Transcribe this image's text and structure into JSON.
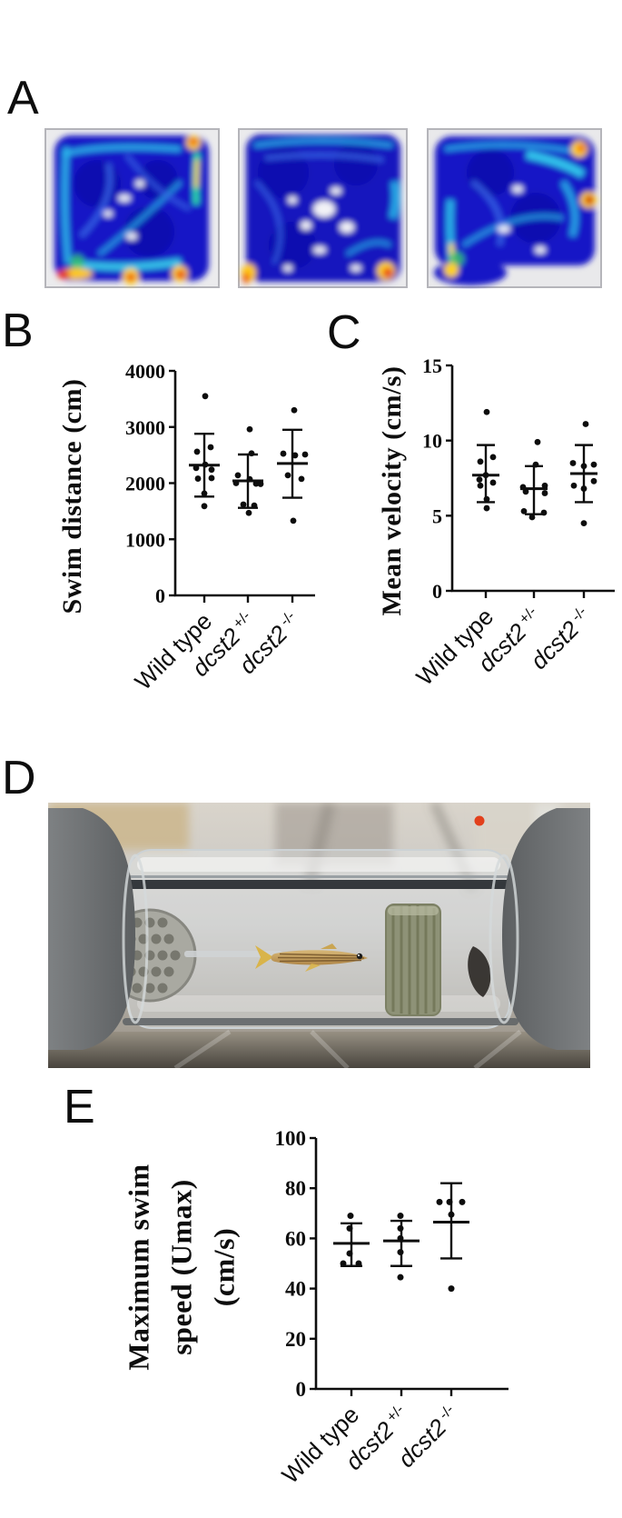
{
  "panels": {
    "a": {
      "label": "A"
    },
    "b": {
      "label": "B"
    },
    "c": {
      "label": "C"
    },
    "d": {
      "label": "D"
    },
    "e": {
      "label": "E"
    }
  },
  "colors": {
    "heatmap_palette": [
      "#0c0cb0",
      "#1516c6",
      "#2bb9ea",
      "#35c46a",
      "#ffd21c",
      "#e8381a"
    ],
    "axis_ink": "#0d0d0d",
    "background": "#ffffff"
  },
  "categories": [
    "Wild type",
    "dcst2 +/-",
    "dcst2 -/-"
  ],
  "chart_data": [
    {
      "id": "b",
      "type": "scatter",
      "title": "Swim distance (cm)",
      "ylabel": "Swim distance (cm)",
      "ylim": [
        0,
        4000
      ],
      "yticks": [
        0,
        1000,
        2000,
        3000,
        4000
      ],
      "grid": false,
      "categories": [
        "Wild type",
        "dcst2 +/-",
        "dcst2 -/-"
      ],
      "cats": [
        [
          {
            "text": "Wild type"
          }
        ],
        [
          {
            "text": "dcst2",
            "italic": true
          },
          {
            "text": " +/-",
            "sup": true
          }
        ],
        [
          {
            "text": "dcst2",
            "italic": true
          },
          {
            "text": " -/-",
            "sup": true
          }
        ]
      ],
      "series": [
        {
          "name": "Wild type",
          "mean": 2320,
          "sd_low": 1760,
          "sd_high": 2880,
          "points": [
            [
              3550,
              1
            ],
            [
              2640,
              7
            ],
            [
              2560,
              -8
            ],
            [
              2330,
              1
            ],
            [
              2270,
              -9
            ],
            [
              2240,
              8
            ],
            [
              2090,
              8
            ],
            [
              2080,
              -7
            ],
            [
              1815,
              0
            ],
            [
              1590,
              0
            ]
          ]
        },
        {
          "name": "dcst2 +/-",
          "mean": 2040,
          "sd_low": 1560,
          "sd_high": 2510,
          "points": [
            [
              2960,
              2
            ],
            [
              2530,
              4
            ],
            [
              2140,
              -11
            ],
            [
              2070,
              2
            ],
            [
              2000,
              -13
            ],
            [
              1990,
              9
            ],
            [
              1985,
              14
            ],
            [
              1620,
              -5
            ],
            [
              1600,
              7
            ],
            [
              1470,
              1
            ]
          ]
        },
        {
          "name": "dcst2 -/-",
          "mean": 2350,
          "sd_low": 1740,
          "sd_high": 2950,
          "points": [
            [
              3300,
              2
            ],
            [
              2525,
              -10
            ],
            [
              2510,
              14
            ],
            [
              2495,
              3
            ],
            [
              2140,
              -5
            ],
            [
              2075,
              10
            ],
            [
              1330,
              1
            ]
          ]
        }
      ]
    },
    {
      "id": "c",
      "type": "scatter",
      "title": "Mean velocity (cm/s)",
      "ylabel": "Mean velocity (cm/s)",
      "ylim": [
        0,
        15
      ],
      "yticks": [
        0,
        5,
        10,
        15
      ],
      "grid": false,
      "categories": [
        "Wild type",
        "dcst2 +/-",
        "dcst2 -/-"
      ],
      "cats": [
        [
          {
            "text": "Wild type"
          }
        ],
        [
          {
            "text": "dcst2",
            "italic": true
          },
          {
            "text": " +/-",
            "sup": true
          }
        ],
        [
          {
            "text": "dcst2",
            "italic": true
          },
          {
            "text": " -/-",
            "sup": true
          }
        ]
      ],
      "series": [
        {
          "name": "Wild type",
          "mean": 7.7,
          "sd_low": 5.9,
          "sd_high": 9.7,
          "points": [
            [
              11.9,
              1
            ],
            [
              8.9,
              8
            ],
            [
              8.6,
              -6
            ],
            [
              7.7,
              0
            ],
            [
              7.4,
              -7
            ],
            [
              7.2,
              8
            ],
            [
              7.0,
              -6
            ],
            [
              6.1,
              1
            ],
            [
              5.5,
              1
            ]
          ]
        },
        {
          "name": "dcst2 +/-",
          "mean": 6.8,
          "sd_low": 5.1,
          "sd_high": 8.3,
          "points": [
            [
              9.9,
              4
            ],
            [
              8.4,
              2
            ],
            [
              7.0,
              12
            ],
            [
              6.9,
              -12
            ],
            [
              6.6,
              -9
            ],
            [
              6.5,
              12
            ],
            [
              5.3,
              -11
            ],
            [
              5.2,
              11
            ],
            [
              4.9,
              -2
            ]
          ]
        },
        {
          "name": "dcst2 -/-",
          "mean": 7.8,
          "sd_low": 5.9,
          "sd_high": 9.7,
          "points": [
            [
              11.1,
              2
            ],
            [
              8.5,
              -12
            ],
            [
              8.4,
              11
            ],
            [
              8.3,
              0
            ],
            [
              7.3,
              11
            ],
            [
              7.0,
              -11
            ],
            [
              6.8,
              0
            ],
            [
              4.5,
              0
            ]
          ]
        }
      ]
    },
    {
      "id": "e",
      "type": "scatter",
      "title": "Maximum swim speed (Umax) (cm/s)",
      "title_lines": [
        "Maximum swim",
        "speed (Umax)",
        "(cm/s)"
      ],
      "ylabel": "Maximum swim speed (Umax) (cm/s)",
      "ylim": [
        0,
        100
      ],
      "yticks": [
        0,
        20,
        40,
        60,
        80,
        100
      ],
      "grid": false,
      "categories": [
        "Wild type",
        "dcst2 +/-",
        "dcst2 -/-"
      ],
      "cats": [
        [
          {
            "text": "Wild type"
          }
        ],
        [
          {
            "text": "dcst2",
            "italic": true
          },
          {
            "text": " +/-",
            "sup": true
          }
        ],
        [
          {
            "text": "dcst2",
            "italic": true
          },
          {
            "text": " -/-",
            "sup": true
          }
        ]
      ],
      "series": [
        {
          "name": "Wild type",
          "mean": 58,
          "sd_low": 49,
          "sd_high": 66,
          "points": [
            [
              69,
              -1
            ],
            [
              64,
              -2
            ],
            [
              54,
              -2
            ],
            [
              50,
              -9
            ],
            [
              50,
              8
            ]
          ]
        },
        {
          "name": "dcst2 +/-",
          "mean": 59,
          "sd_low": 49,
          "sd_high": 67,
          "points": [
            [
              69,
              -1
            ],
            [
              64,
              -1
            ],
            [
              60,
              -1
            ],
            [
              54.5,
              -1
            ],
            [
              44.5,
              -1
            ]
          ]
        },
        {
          "name": "dcst2 -/-",
          "mean": 66.5,
          "sd_low": 52,
          "sd_high": 82,
          "points": [
            [
              74.5,
              -13
            ],
            [
              74.5,
              -2
            ],
            [
              74.5,
              12
            ],
            [
              69.5,
              0
            ],
            [
              40,
              0
            ]
          ]
        }
      ]
    }
  ]
}
